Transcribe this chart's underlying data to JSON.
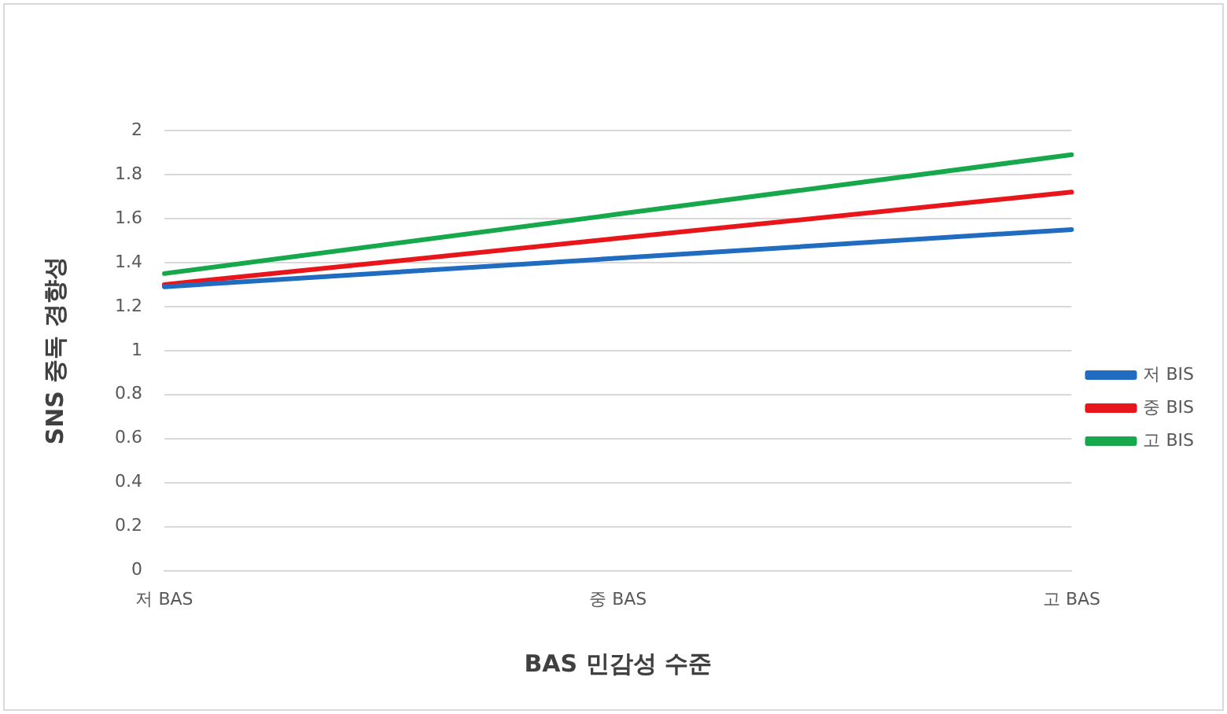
{
  "chart_data": {
    "type": "line",
    "xlabel": "BAS 민감성 수준",
    "ylabel": "SNS 중독 경향성",
    "categories": [
      "저 BAS",
      "중 BAS",
      "고 BAS"
    ],
    "series": [
      {
        "name": "저 BIS",
        "color": "#1f6cc0",
        "values": [
          1.29,
          1.42,
          1.55
        ]
      },
      {
        "name": "중 BIS",
        "color": "#e8161b",
        "values": [
          1.3,
          1.51,
          1.72
        ]
      },
      {
        "name": "고 BIS",
        "color": "#16a84a",
        "values": [
          1.35,
          1.62,
          1.89
        ]
      }
    ],
    "ylim": [
      0,
      2
    ],
    "yticks": [
      0,
      0.2,
      0.4,
      0.6,
      0.8,
      1,
      1.2,
      1.4,
      1.6,
      1.8,
      2
    ],
    "grid": "y",
    "legend": "right",
    "marker": "none",
    "line_style": "solid"
  }
}
